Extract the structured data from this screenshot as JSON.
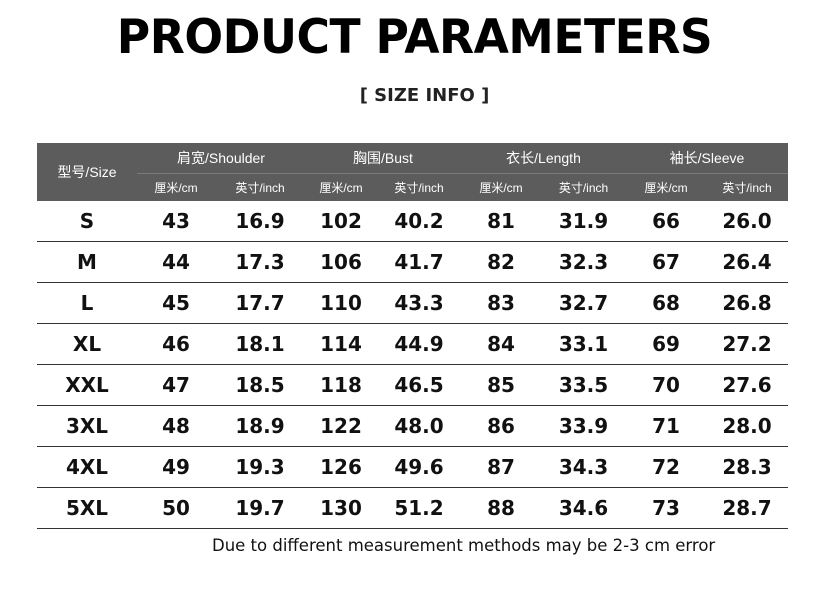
{
  "title": "PRODUCT PARAMETERS",
  "subtitle": "[ SIZE  INFO ]",
  "table": {
    "size_header": "型号/Size",
    "groups": [
      "肩宽/Shoulder",
      "胸围/Bust",
      "衣长/Length",
      "袖长/Sleeve"
    ],
    "unit_cm": "厘米/cm",
    "unit_inch": "英寸/inch",
    "rows": [
      {
        "size": "S",
        "values": [
          "43",
          "16.9",
          "102",
          "40.2",
          "81",
          "31.9",
          "66",
          "26.0"
        ]
      },
      {
        "size": "M",
        "values": [
          "44",
          "17.3",
          "106",
          "41.7",
          "82",
          "32.3",
          "67",
          "26.4"
        ]
      },
      {
        "size": "L",
        "values": [
          "45",
          "17.7",
          "110",
          "43.3",
          "83",
          "32.7",
          "68",
          "26.8"
        ]
      },
      {
        "size": "XL",
        "values": [
          "46",
          "18.1",
          "114",
          "44.9",
          "84",
          "33.1",
          "69",
          "27.2"
        ]
      },
      {
        "size": "XXL",
        "values": [
          "47",
          "18.5",
          "118",
          "46.5",
          "85",
          "33.5",
          "70",
          "27.6"
        ]
      },
      {
        "size": "3XL",
        "values": [
          "48",
          "18.9",
          "122",
          "48.0",
          "86",
          "33.9",
          "71",
          "28.0"
        ]
      },
      {
        "size": "4XL",
        "values": [
          "49",
          "19.3",
          "126",
          "49.6",
          "87",
          "34.3",
          "72",
          "28.3"
        ]
      },
      {
        "size": "5XL",
        "values": [
          "50",
          "19.7",
          "130",
          "51.2",
          "88",
          "34.6",
          "73",
          "28.7"
        ]
      }
    ]
  },
  "note": "Due to different measurement methods may be 2-3 cm error",
  "colors": {
    "header_bg": "#5c5c5c",
    "header_text": "#ffffff",
    "row_line": "#333333"
  }
}
